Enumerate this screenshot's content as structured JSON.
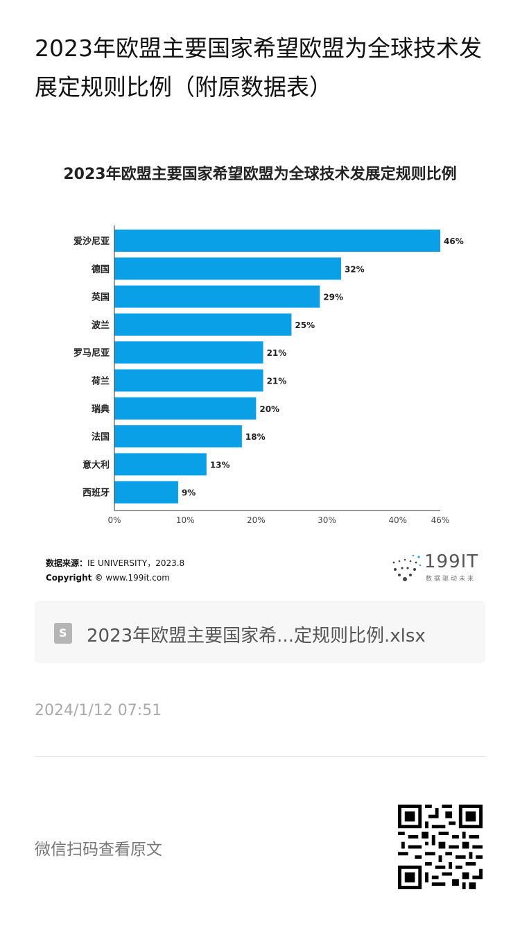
{
  "article": {
    "title": "2023年欧盟主要国家希望欧盟为全球技术发展定规则比例（附原数据表）"
  },
  "chart_data": {
    "type": "bar",
    "orientation": "horizontal",
    "title": "2023年欧盟主要国家希望欧盟为全球技术发展定规则比例",
    "categories": [
      "爱沙尼亚",
      "德国",
      "英国",
      "波兰",
      "罗马尼亚",
      "荷兰",
      "瑞典",
      "法国",
      "意大利",
      "西班牙"
    ],
    "values": [
      46,
      32,
      29,
      25,
      21,
      21,
      20,
      18,
      13,
      9
    ],
    "value_labels": [
      "46%",
      "32%",
      "29%",
      "25%",
      "21%",
      "21%",
      "20%",
      "18%",
      "13%",
      "9%"
    ],
    "x_ticks": [
      "0%",
      "10%",
      "20%",
      "30%",
      "40%",
      "46%"
    ],
    "x_tick_values": [
      0,
      10,
      20,
      30,
      40,
      46
    ],
    "xlim": [
      0,
      46
    ],
    "bar_color": "#0aa0e8",
    "grid": false
  },
  "source": {
    "label": "数据来源：",
    "text": "IE UNIVERSITY，2023.8",
    "copyright_label": "Copyright ©",
    "copyright_text": "www.199it.com"
  },
  "logo": {
    "text": "199IT",
    "tagline": "数据驱动未来"
  },
  "attachment": {
    "icon": "spreadsheet-file-icon",
    "icon_glyph": "S",
    "file_name": "2023年欧盟主要国家希...定规则比例.xlsx"
  },
  "meta": {
    "timestamp": "2024/1/12 07:51",
    "scan_prompt": "微信扫码查看原文"
  },
  "qr": {
    "icon": "qr-code-icon"
  }
}
